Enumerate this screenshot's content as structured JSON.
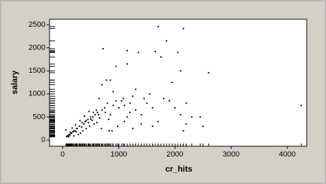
{
  "chart_data": {
    "type": "scatter",
    "x_label": "cr_hits",
    "y_label": "salary",
    "x": [
      4250,
      2600,
      2150,
      1700,
      1850,
      2050,
      1650,
      1150,
      1350,
      720,
      1750,
      950,
      1150,
      2100,
      850,
      780,
      1300,
      1950,
      1550,
      1450,
      1500,
      1250,
      1050,
      900,
      1000,
      1100,
      1200,
      650,
      700,
      600,
      550,
      500,
      450,
      400,
      350,
      300,
      250,
      200,
      150,
      100,
      80,
      120,
      180,
      220,
      260,
      300,
      340,
      380,
      420,
      460,
      500,
      540,
      580,
      620,
      660,
      700,
      750,
      800,
      850,
      900,
      950,
      1000,
      1080,
      1150,
      1200,
      1300,
      1400,
      1600,
      1800,
      1900,
      2000,
      2100,
      2200,
      2300,
      2450,
      2500,
      2200,
      2150,
      1700,
      1600,
      1400,
      1250,
      1100,
      980,
      880,
      820,
      760,
      640,
      560,
      480,
      420,
      360,
      320,
      280,
      240,
      200,
      160,
      130,
      110,
      90,
      70,
      60,
      140,
      170,
      230,
      310,
      390,
      470,
      530,
      610,
      690,
      830
    ],
    "values": [
      750,
      1460,
      2420,
      2460,
      2150,
      1900,
      1920,
      1940,
      1900,
      1980,
      1800,
      1600,
      1650,
      1500,
      1300,
      1300,
      1100,
      1250,
      1000,
      900,
      800,
      950,
      850,
      1050,
      700,
      750,
      600,
      900,
      1200,
      650,
      600,
      500,
      450,
      400,
      380,
      300,
      250,
      200,
      150,
      100,
      80,
      120,
      180,
      200,
      250,
      300,
      280,
      350,
      420,
      380,
      450,
      500,
      550,
      600,
      480,
      650,
      700,
      800,
      550,
      750,
      850,
      700,
      900,
      500,
      800,
      650,
      550,
      700,
      900,
      850,
      700,
      550,
      800,
      500,
      500,
      300,
      350,
      200,
      400,
      300,
      350,
      250,
      400,
      300,
      200,
      450,
      600,
      550,
      350,
      300,
      250,
      200,
      150,
      120,
      180,
      90,
      150,
      110,
      70,
      90,
      80,
      220,
      160,
      260,
      330,
      420,
      520,
      620,
      430,
      380,
      250,
      200
    ],
    "color": "#000000",
    "xlim": [
      -233,
      4346
    ],
    "ylim": [
      -134,
      2620
    ],
    "xticks": [
      0,
      1000,
      2000,
      3000,
      4000
    ],
    "yticks": [
      0,
      500,
      1000,
      1500,
      2000,
      2500
    ],
    "rug": true
  }
}
